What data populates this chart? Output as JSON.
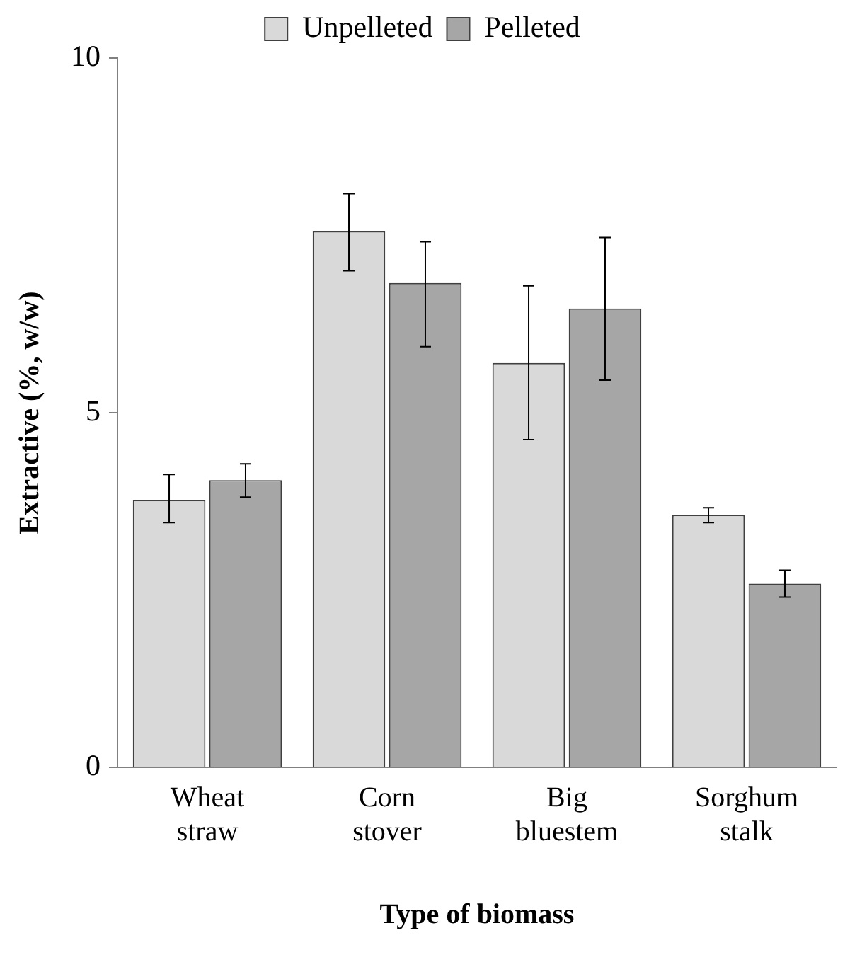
{
  "chart_data": {
    "type": "bar",
    "xlabel": "Type of biomass",
    "ylabel": "Extractive (%, w/w)",
    "categories": [
      "Wheat straw",
      "Corn stover",
      "Big bluestem",
      "Sorghum stalk"
    ],
    "series": [
      {
        "name": "Unpelleted",
        "color": "#d9d9d9",
        "values": [
          3.77,
          7.56,
          5.7,
          3.56
        ],
        "errors": [
          [
            3.45,
            4.13
          ],
          [
            7.0,
            8.09
          ],
          [
            4.62,
            6.79
          ],
          [
            3.45,
            3.66
          ]
        ]
      },
      {
        "name": "Pelleted",
        "color": "#a6a6a6",
        "values": [
          4.05,
          6.83,
          6.47,
          2.59
        ],
        "errors": [
          [
            3.81,
            4.28
          ],
          [
            5.93,
            7.41
          ],
          [
            5.46,
            7.47
          ],
          [
            2.4,
            2.78
          ]
        ]
      }
    ],
    "ylim": [
      0,
      10
    ],
    "yticks": [
      0,
      5,
      10
    ],
    "grid": false,
    "legend": "top"
  }
}
